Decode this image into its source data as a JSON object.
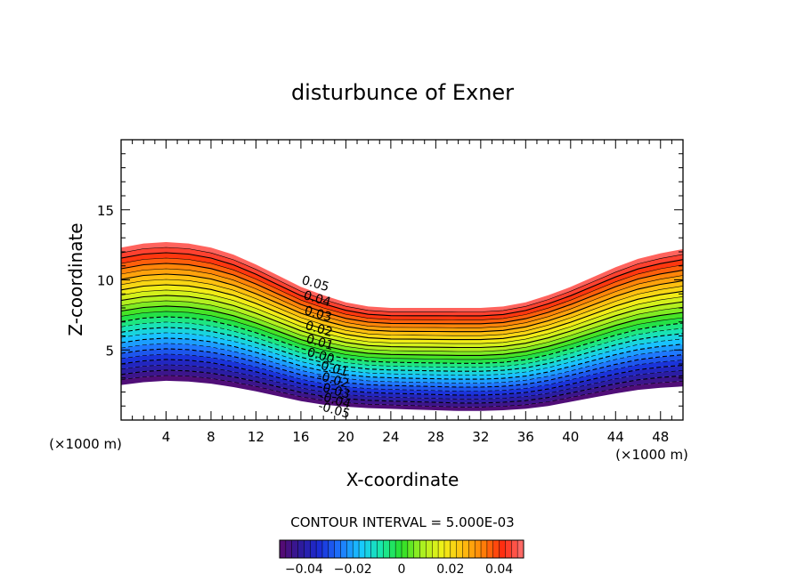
{
  "chart_data": {
    "type": "contour",
    "title": "disturbunce of Exner",
    "xlabel": "X-coordinate",
    "ylabel": "Z-coordinate",
    "x_unit_label": "(×1000 m)",
    "z_unit_label": "(×1000 m)",
    "xlim": [
      0,
      50
    ],
    "ylim": [
      0,
      20
    ],
    "xticks": [
      4,
      8,
      12,
      16,
      20,
      24,
      28,
      32,
      36,
      40,
      44,
      48
    ],
    "yticks": [
      5,
      10,
      15
    ],
    "contour_interval_text": "CONTOUR INTERVAL = 5.000E-03",
    "contour_interval": 0.005,
    "value_range": [
      -0.05,
      0.05
    ],
    "negative_contours_dashed": true,
    "contour_labels": [
      "0.05",
      "0.04",
      "0.03",
      "0.02",
      "0.01",
      "0.00",
      "-0.01",
      "-0.02",
      "-0.03",
      "-0.04",
      "-0.05"
    ],
    "colorbar": {
      "range": [
        -0.05,
        0.05
      ],
      "tick_values": [
        -0.04,
        -0.02,
        0,
        0.02,
        0.04
      ],
      "tick_labels": [
        "−0.04",
        "−0.02",
        "0",
        "0.02",
        "0.04"
      ]
    },
    "colormap": [
      "#5a0a6e",
      "#2e1a9a",
      "#1a2ed8",
      "#1e78ff",
      "#18c8ff",
      "#18e8a8",
      "#28e028",
      "#a8f020",
      "#f0f018",
      "#ffc010",
      "#ff8008",
      "#ff2a10",
      "#ff7474"
    ],
    "surface_profile_x": [
      0,
      2,
      4,
      6,
      8,
      10,
      12,
      14,
      16,
      18,
      20,
      22,
      24,
      26,
      28,
      30,
      32,
      34,
      36,
      38,
      40,
      42,
      44,
      46,
      48,
      50
    ],
    "surface_profile_z_top": [
      12.3,
      12.6,
      12.7,
      12.6,
      12.3,
      11.8,
      11.1,
      10.3,
      9.5,
      8.9,
      8.4,
      8.1,
      8.0,
      8.0,
      8.0,
      8.0,
      8.0,
      8.1,
      8.4,
      8.9,
      9.5,
      10.2,
      10.9,
      11.5,
      11.9,
      12.2
    ],
    "surface_profile_z_bottom": [
      2.5,
      2.7,
      2.8,
      2.75,
      2.6,
      2.35,
      2.05,
      1.7,
      1.35,
      1.1,
      0.95,
      0.85,
      0.8,
      0.75,
      0.7,
      0.65,
      0.65,
      0.7,
      0.8,
      1.0,
      1.3,
      1.6,
      1.9,
      2.15,
      2.3,
      2.4
    ]
  }
}
